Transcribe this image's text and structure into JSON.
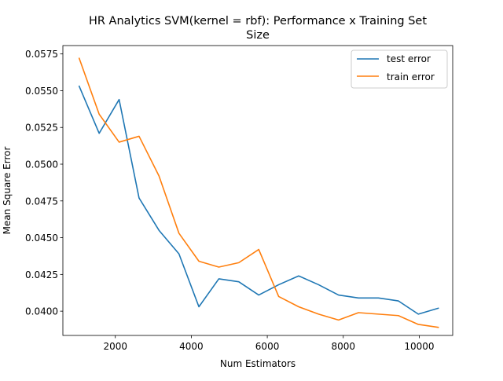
{
  "chart_data": {
    "type": "line",
    "title_line1": "HR Analytics SVM(kernel = rbf): Performance x Training Set",
    "title_line2": "Size",
    "xlabel": "Num Estimators",
    "ylabel": "Mean Square Error",
    "xlim": [
      620,
      10880
    ],
    "ylim": [
      0.03835,
      0.05807
    ],
    "xticks": [
      2000,
      4000,
      6000,
      8000,
      10000
    ],
    "xtick_labels": [
      "2000",
      "4000",
      "6000",
      "8000",
      "10000"
    ],
    "yticks": [
      0.04,
      0.0425,
      0.045,
      0.0475,
      0.05,
      0.0525,
      0.055,
      0.0575
    ],
    "ytick_labels": [
      "0.0400",
      "0.0425",
      "0.0450",
      "0.0475",
      "0.0500",
      "0.0525",
      "0.0550",
      "0.0575"
    ],
    "grid": false,
    "legend_position": "upper right",
    "x": [
      1050,
      1575,
      2100,
      2625,
      3150,
      3675,
      4200,
      4725,
      5250,
      5775,
      6300,
      6825,
      7350,
      7875,
      8400,
      8925,
      9450,
      9975,
      10500
    ],
    "series": [
      {
        "name": "test error",
        "color": "#1f77b4",
        "values": [
          0.0553,
          0.0521,
          0.0544,
          0.0477,
          0.0455,
          0.0439,
          0.0403,
          0.0422,
          0.042,
          0.0411,
          0.0418,
          0.0424,
          0.0418,
          0.0411,
          0.0409,
          0.0409,
          0.0407,
          0.0398,
          0.0402
        ]
      },
      {
        "name": "train error",
        "color": "#ff7f0e",
        "values": [
          0.0572,
          0.0534,
          0.0515,
          0.0519,
          0.0492,
          0.0453,
          0.0434,
          0.043,
          0.0433,
          0.0442,
          0.041,
          0.0403,
          0.0398,
          0.0394,
          0.0399,
          0.0398,
          0.0397,
          0.0391,
          0.0389
        ]
      }
    ]
  }
}
